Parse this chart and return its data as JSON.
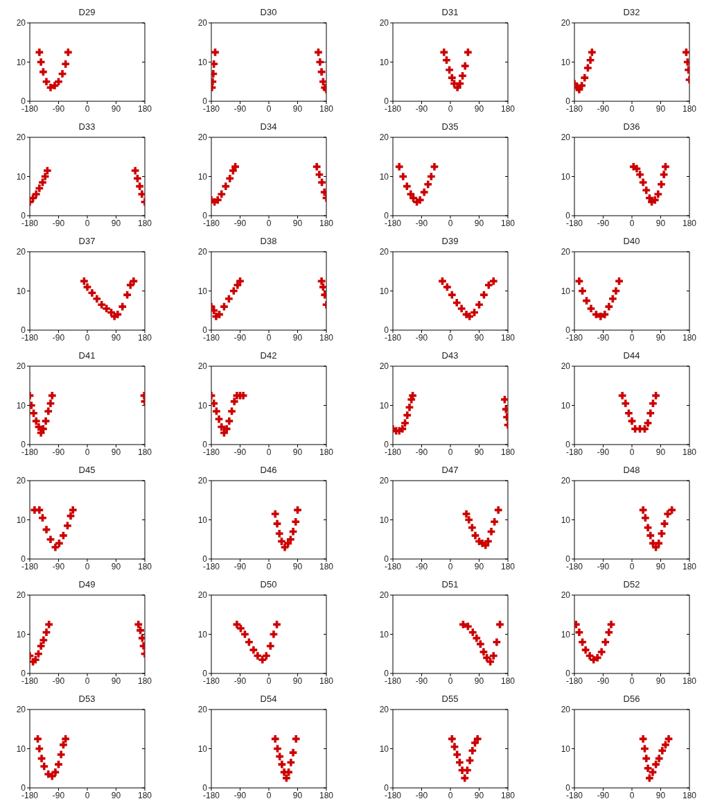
{
  "chart_data": [
    {
      "type": "scatter",
      "title": "D29",
      "x": [
        -150,
        -145,
        -138,
        -128,
        -115,
        -102,
        -90,
        -78,
        -68,
        -60
      ],
      "series": [
        {
          "color": "#cc0000",
          "values": [
            12.5,
            10,
            7.5,
            5,
            3.5,
            4,
            5,
            7,
            9.5,
            12.5
          ]
        }
      ],
      "xlim": [
        -180,
        180
      ],
      "xticks": [
        -180,
        -90,
        0,
        90,
        180
      ],
      "ylim": [
        0,
        20
      ],
      "yticks": [
        0,
        10,
        20
      ],
      "marker": "cross"
    },
    {
      "type": "scatter",
      "title": "D30",
      "x": [
        -178,
        -176,
        -174,
        -172,
        -168,
        155,
        160,
        165,
        170,
        175,
        180
      ],
      "series": [
        {
          "color": "#cc0000",
          "values": [
            3.5,
            5,
            7,
            9.5,
            12.5,
            12.5,
            10,
            7.5,
            5,
            3.5,
            3
          ]
        }
      ],
      "xlim": [
        -180,
        180
      ],
      "xticks": [
        -180,
        -90,
        0,
        90,
        180
      ],
      "ylim": [
        0,
        20
      ],
      "yticks": [
        0,
        10,
        20
      ],
      "marker": "cross"
    },
    {
      "type": "scatter",
      "title": "D31",
      "x": [
        -20,
        -12,
        -3,
        5,
        12,
        22,
        30,
        38,
        46,
        55
      ],
      "series": [
        {
          "color": "#cc0000",
          "values": [
            12.5,
            10.5,
            8,
            6,
            4.5,
            3.5,
            4.5,
            6.5,
            9,
            12.5
          ]
        }
      ],
      "xlim": [
        -180,
        180
      ],
      "xticks": [
        -180,
        -90,
        0,
        90,
        180
      ],
      "ylim": [
        0,
        20
      ],
      "yticks": [
        0,
        10,
        20
      ],
      "marker": "cross"
    },
    {
      "type": "scatter",
      "title": "D32",
      "x": [
        -180,
        -172,
        -165,
        -157,
        -148,
        -138,
        -130,
        -125,
        170,
        174,
        177,
        180
      ],
      "series": [
        {
          "color": "#cc0000",
          "values": [
            4.5,
            3.5,
            3,
            4,
            6,
            8.5,
            10.5,
            12.5,
            12.5,
            10,
            8,
            5.5
          ]
        }
      ],
      "xlim": [
        -180,
        180
      ],
      "xticks": [
        -180,
        -90,
        0,
        90,
        180
      ],
      "ylim": [
        0,
        20
      ],
      "yticks": [
        0,
        10,
        20
      ],
      "marker": "cross"
    },
    {
      "type": "scatter",
      "title": "D33",
      "x": [
        -180,
        -170,
        -160,
        -150,
        -140,
        -132,
        -125,
        150,
        157,
        164,
        171,
        180
      ],
      "series": [
        {
          "color": "#cc0000",
          "values": [
            3.5,
            4.5,
            5.5,
            7,
            8.5,
            10,
            11.5,
            11.5,
            9.5,
            7.5,
            5.5,
            3.5
          ]
        }
      ],
      "xlim": [
        -180,
        180
      ],
      "xticks": [
        -180,
        -90,
        0,
        90,
        180
      ],
      "ylim": [
        0,
        20
      ],
      "yticks": [
        0,
        10,
        20
      ],
      "marker": "cross"
    },
    {
      "type": "scatter",
      "title": "D34",
      "x": [
        -180,
        -170,
        -160,
        -148,
        -135,
        -122,
        -112,
        -105,
        150,
        158,
        166,
        174,
        180
      ],
      "series": [
        {
          "color": "#cc0000",
          "values": [
            4,
            3.5,
            4,
            5.5,
            7.5,
            9.5,
            11.5,
            12.5,
            12.5,
            10.5,
            8.5,
            6,
            4.5
          ]
        }
      ],
      "xlim": [
        -180,
        180
      ],
      "xticks": [
        -180,
        -90,
        0,
        90,
        180
      ],
      "ylim": [
        0,
        20
      ],
      "yticks": [
        0,
        10,
        20
      ],
      "marker": "cross"
    },
    {
      "type": "scatter",
      "title": "D35",
      "x": [
        -160,
        -148,
        -136,
        -124,
        -116,
        -105,
        -95,
        -82,
        -70,
        -60,
        -50
      ],
      "series": [
        {
          "color": "#cc0000",
          "values": [
            12.5,
            10,
            7.5,
            5.5,
            4.5,
            3.5,
            4,
            6,
            8,
            10,
            12.5
          ]
        }
      ],
      "xlim": [
        -180,
        180
      ],
      "xticks": [
        -180,
        -90,
        0,
        90,
        180
      ],
      "ylim": [
        0,
        20
      ],
      "yticks": [
        0,
        10,
        20
      ],
      "marker": "cross"
    },
    {
      "type": "scatter",
      "title": "D36",
      "x": [
        5,
        15,
        25,
        35,
        45,
        55,
        62,
        72,
        82,
        92,
        100,
        105
      ],
      "series": [
        {
          "color": "#cc0000",
          "values": [
            12.5,
            12,
            10.5,
            8.5,
            6.5,
            4.5,
            3.5,
            4,
            5.5,
            8,
            10.5,
            12.5
          ]
        }
      ],
      "xlim": [
        -180,
        180
      ],
      "xticks": [
        -180,
        -90,
        0,
        90,
        180
      ],
      "ylim": [
        0,
        20
      ],
      "yticks": [
        0,
        10,
        20
      ],
      "marker": "cross"
    },
    {
      "type": "scatter",
      "title": "D37",
      "x": [
        -10,
        0,
        15,
        30,
        45,
        60,
        75,
        85,
        95,
        110,
        125,
        135,
        145
      ],
      "series": [
        {
          "color": "#cc0000",
          "values": [
            12.5,
            11,
            9.5,
            8,
            6.5,
            5.5,
            4.5,
            3.5,
            4,
            6,
            9,
            11.5,
            12.5
          ]
        }
      ],
      "xlim": [
        -180,
        180
      ],
      "xticks": [
        -180,
        -90,
        0,
        90,
        180
      ],
      "ylim": [
        0,
        20
      ],
      "yticks": [
        0,
        10,
        20
      ],
      "marker": "cross"
    },
    {
      "type": "scatter",
      "title": "D38",
      "x": [
        -180,
        -172,
        -165,
        -155,
        -140,
        -125,
        -110,
        -98,
        -90,
        165,
        170,
        175,
        180
      ],
      "series": [
        {
          "color": "#cc0000",
          "values": [
            6,
            5,
            3.5,
            4,
            6,
            8,
            10,
            11.5,
            12.5,
            12.5,
            11,
            9,
            6.5
          ]
        }
      ],
      "xlim": [
        -180,
        180
      ],
      "xticks": [
        -180,
        -90,
        0,
        90,
        180
      ],
      "ylim": [
        0,
        20
      ],
      "yticks": [
        0,
        10,
        20
      ],
      "marker": "cross"
    },
    {
      "type": "scatter",
      "title": "D39",
      "x": [
        -25,
        -10,
        5,
        20,
        35,
        50,
        60,
        75,
        90,
        105,
        120,
        135
      ],
      "series": [
        {
          "color": "#cc0000",
          "values": [
            12.5,
            11,
            9,
            7,
            5.5,
            4,
            3.5,
            4.5,
            6.5,
            9,
            11.5,
            12.5
          ]
        }
      ],
      "xlim": [
        -180,
        180
      ],
      "xticks": [
        -180,
        -90,
        0,
        90,
        180
      ],
      "ylim": [
        0,
        20
      ],
      "yticks": [
        0,
        10,
        20
      ],
      "marker": "cross"
    },
    {
      "type": "scatter",
      "title": "D40",
      "x": [
        -165,
        -155,
        -142,
        -128,
        -112,
        -98,
        -85,
        -72,
        -60,
        -50,
        -40
      ],
      "series": [
        {
          "color": "#cc0000",
          "values": [
            12.5,
            10,
            7.5,
            5.5,
            4,
            3.5,
            4,
            6,
            8,
            10,
            12.5
          ]
        }
      ],
      "xlim": [
        -180,
        180
      ],
      "xticks": [
        -180,
        -90,
        0,
        90,
        180
      ],
      "ylim": [
        0,
        20
      ],
      "yticks": [
        0,
        10,
        20
      ],
      "marker": "cross"
    },
    {
      "type": "scatter",
      "title": "D41",
      "x": [
        -180,
        -175,
        -168,
        -160,
        -152,
        -145,
        -138,
        -130,
        -122,
        -115,
        -110,
        178,
        180
      ],
      "series": [
        {
          "color": "#cc0000",
          "values": [
            12.5,
            10,
            8,
            6,
            4.5,
            3,
            4,
            6,
            8.5,
            10.5,
            12.5,
            12.5,
            11
          ]
        }
      ],
      "xlim": [
        -180,
        180
      ],
      "xticks": [
        -180,
        -90,
        0,
        90,
        180
      ],
      "ylim": [
        0,
        20
      ],
      "yticks": [
        0,
        10,
        20
      ],
      "marker": "cross"
    },
    {
      "type": "scatter",
      "title": "D42",
      "x": [
        -180,
        -172,
        -164,
        -156,
        -148,
        -140,
        -132,
        -124,
        -116,
        -108,
        -100,
        -90,
        -80
      ],
      "series": [
        {
          "color": "#cc0000",
          "values": [
            12.5,
            10.5,
            8.5,
            6.5,
            4.5,
            3,
            4,
            6,
            8.5,
            11,
            12.5,
            12.5,
            12.5
          ]
        }
      ],
      "xlim": [
        -180,
        180
      ],
      "xticks": [
        -180,
        -90,
        0,
        90,
        180
      ],
      "ylim": [
        0,
        20
      ],
      "yticks": [
        0,
        10,
        20
      ],
      "marker": "cross"
    },
    {
      "type": "scatter",
      "title": "D43",
      "x": [
        -180,
        -170,
        -160,
        -150,
        -142,
        -135,
        -128,
        -122,
        -118,
        170,
        174,
        177,
        180
      ],
      "series": [
        {
          "color": "#cc0000",
          "values": [
            4,
            3.5,
            3.5,
            4,
            5.5,
            7.5,
            9.5,
            11.5,
            12.5,
            11.5,
            9,
            7,
            5
          ]
        }
      ],
      "xlim": [
        -180,
        180
      ],
      "xticks": [
        -180,
        -90,
        0,
        90,
        180
      ],
      "ylim": [
        0,
        20
      ],
      "yticks": [
        0,
        10,
        20
      ],
      "marker": "cross"
    },
    {
      "type": "scatter",
      "title": "D44",
      "x": [
        -30,
        -20,
        -10,
        0,
        10,
        25,
        40,
        50,
        58,
        66,
        75
      ],
      "series": [
        {
          "color": "#cc0000",
          "values": [
            12.5,
            10.5,
            8,
            6,
            4,
            4,
            4,
            5.5,
            8,
            10.5,
            12.5
          ]
        }
      ],
      "xlim": [
        -180,
        180
      ],
      "xticks": [
        -180,
        -90,
        0,
        90,
        180
      ],
      "ylim": [
        0,
        20
      ],
      "yticks": [
        0,
        10,
        20
      ],
      "marker": "cross"
    },
    {
      "type": "scatter",
      "title": "D45",
      "x": [
        -165,
        -150,
        -140,
        -128,
        -115,
        -100,
        -88,
        -75,
        -62,
        -52,
        -45
      ],
      "series": [
        {
          "color": "#cc0000",
          "values": [
            12.5,
            12.5,
            10.5,
            7.5,
            5,
            3,
            4,
            6,
            8.5,
            11,
            12.5
          ]
        }
      ],
      "xlim": [
        -180,
        180
      ],
      "xticks": [
        -180,
        -90,
        0,
        90,
        180
      ],
      "ylim": [
        0,
        20
      ],
      "yticks": [
        0,
        10,
        20
      ],
      "marker": "cross"
    },
    {
      "type": "scatter",
      "title": "D46",
      "x": [
        20,
        26,
        33,
        40,
        50,
        60,
        68,
        76,
        84,
        90
      ],
      "series": [
        {
          "color": "#cc0000",
          "values": [
            11.5,
            9,
            6.5,
            4.5,
            3,
            4,
            5,
            7,
            9.5,
            12.5
          ]
        }
      ],
      "xlim": [
        -180,
        180
      ],
      "xticks": [
        -180,
        -90,
        0,
        90,
        180
      ],
      "ylim": [
        0,
        20
      ],
      "yticks": [
        0,
        10,
        20
      ],
      "marker": "cross"
    },
    {
      "type": "scatter",
      "title": "D47",
      "x": [
        50,
        58,
        68,
        78,
        90,
        100,
        110,
        118,
        128,
        138,
        150
      ],
      "series": [
        {
          "color": "#cc0000",
          "values": [
            11.5,
            10,
            8,
            6,
            4.5,
            4,
            3.5,
            4.5,
            7,
            9.5,
            12.5
          ]
        }
      ],
      "xlim": [
        -180,
        180
      ],
      "xticks": [
        -180,
        -90,
        0,
        90,
        180
      ],
      "ylim": [
        0,
        20
      ],
      "yticks": [
        0,
        10,
        20
      ],
      "marker": "cross"
    },
    {
      "type": "scatter",
      "title": "D48",
      "x": [
        35,
        42,
        50,
        58,
        66,
        75,
        84,
        93,
        102,
        112,
        125
      ],
      "series": [
        {
          "color": "#cc0000",
          "values": [
            12.5,
            10.5,
            8,
            6,
            4,
            3,
            4,
            6.5,
            9,
            11.5,
            12.5
          ]
        }
      ],
      "xlim": [
        -180,
        180
      ],
      "xticks": [
        -180,
        -90,
        0,
        90,
        180
      ],
      "ylim": [
        0,
        20
      ],
      "yticks": [
        0,
        10,
        20
      ],
      "marker": "cross"
    },
    {
      "type": "scatter",
      "title": "D49",
      "x": [
        -180,
        -170,
        -162,
        -153,
        -145,
        -137,
        -128,
        -120,
        160,
        166,
        172,
        176,
        180
      ],
      "series": [
        {
          "color": "#cc0000",
          "values": [
            4.5,
            3,
            3.5,
            5,
            7,
            8.5,
            10.5,
            12.5,
            12.5,
            11,
            9,
            7,
            5
          ]
        }
      ],
      "xlim": [
        -180,
        180
      ],
      "xticks": [
        -180,
        -90,
        0,
        90,
        180
      ],
      "ylim": [
        0,
        20
      ],
      "yticks": [
        0,
        10,
        20
      ],
      "marker": "cross"
    },
    {
      "type": "scatter",
      "title": "D50",
      "x": [
        -100,
        -88,
        -75,
        -62,
        -48,
        -35,
        -20,
        -8,
        5,
        15,
        25
      ],
      "series": [
        {
          "color": "#cc0000",
          "values": [
            12.5,
            11.5,
            10,
            8,
            6,
            4.5,
            3.5,
            4.5,
            7,
            10,
            12.5
          ]
        }
      ],
      "xlim": [
        -180,
        180
      ],
      "xticks": [
        -180,
        -90,
        0,
        90,
        180
      ],
      "ylim": [
        0,
        20
      ],
      "yticks": [
        0,
        10,
        20
      ],
      "marker": "cross"
    },
    {
      "type": "scatter",
      "title": "D51",
      "x": [
        40,
        55,
        70,
        82,
        94,
        104,
        114,
        125,
        135,
        145,
        155
      ],
      "series": [
        {
          "color": "#cc0000",
          "values": [
            12.5,
            12,
            10.5,
            9,
            7.5,
            5.5,
            4,
            3,
            4.5,
            8,
            12.5
          ]
        }
      ],
      "xlim": [
        -180,
        180
      ],
      "xticks": [
        -180,
        -90,
        0,
        90,
        180
      ],
      "ylim": [
        0,
        20
      ],
      "yticks": [
        0,
        10,
        20
      ],
      "marker": "cross"
    },
    {
      "type": "scatter",
      "title": "D52",
      "x": [
        -175,
        -165,
        -155,
        -145,
        -132,
        -120,
        -108,
        -95,
        -83,
        -72,
        -65
      ],
      "series": [
        {
          "color": "#cc0000",
          "values": [
            12.5,
            10.5,
            8,
            6,
            4.5,
            3.5,
            4,
            5.5,
            8,
            10.5,
            12.5
          ]
        }
      ],
      "xlim": [
        -180,
        180
      ],
      "xticks": [
        -180,
        -90,
        0,
        90,
        180
      ],
      "ylim": [
        0,
        20
      ],
      "yticks": [
        0,
        10,
        20
      ],
      "marker": "cross"
    },
    {
      "type": "scatter",
      "title": "D53",
      "x": [
        -155,
        -150,
        -143,
        -135,
        -122,
        -110,
        -100,
        -90,
        -82,
        -75,
        -68
      ],
      "series": [
        {
          "color": "#cc0000",
          "values": [
            12.5,
            10,
            7.5,
            5.5,
            3.5,
            3,
            4,
            6,
            8.5,
            11,
            12.5
          ]
        }
      ],
      "xlim": [
        -180,
        180
      ],
      "xticks": [
        -180,
        -90,
        0,
        90,
        180
      ],
      "ylim": [
        0,
        20
      ],
      "yticks": [
        0,
        10,
        20
      ],
      "marker": "cross"
    },
    {
      "type": "scatter",
      "title": "D54",
      "x": [
        20,
        27,
        34,
        41,
        48,
        55,
        62,
        69,
        76,
        85
      ],
      "series": [
        {
          "color": "#cc0000",
          "values": [
            12.5,
            10,
            8,
            6,
            4,
            2.5,
            4,
            6.5,
            9,
            12.5
          ]
        }
      ],
      "xlim": [
        -180,
        180
      ],
      "xticks": [
        -180,
        -90,
        0,
        90,
        180
      ],
      "ylim": [
        0,
        20
      ],
      "yticks": [
        0,
        10,
        20
      ],
      "marker": "cross"
    },
    {
      "type": "scatter",
      "title": "D55",
      "x": [
        5,
        13,
        21,
        29,
        37,
        45,
        53,
        61,
        69,
        77,
        85
      ],
      "series": [
        {
          "color": "#cc0000",
          "values": [
            12.5,
            10.5,
            8.5,
            6.5,
            4.5,
            2.5,
            4.5,
            7,
            9.5,
            11.5,
            12.5
          ]
        }
      ],
      "xlim": [
        -180,
        180
      ],
      "xticks": [
        -180,
        -90,
        0,
        90,
        180
      ],
      "ylim": [
        0,
        20
      ],
      "yticks": [
        0,
        10,
        20
      ],
      "marker": "cross"
    },
    {
      "type": "scatter",
      "title": "D56",
      "x": [
        35,
        40,
        45,
        50,
        55,
        65,
        75,
        85,
        95,
        105,
        115
      ],
      "series": [
        {
          "color": "#cc0000",
          "values": [
            12.5,
            10,
            7.5,
            5,
            2.5,
            4,
            6,
            7.5,
            9.5,
            11,
            12.5
          ]
        }
      ],
      "xlim": [
        -180,
        180
      ],
      "xticks": [
        -180,
        -90,
        0,
        90,
        180
      ],
      "ylim": [
        0,
        20
      ],
      "yticks": [
        0,
        10,
        20
      ],
      "marker": "cross"
    }
  ]
}
